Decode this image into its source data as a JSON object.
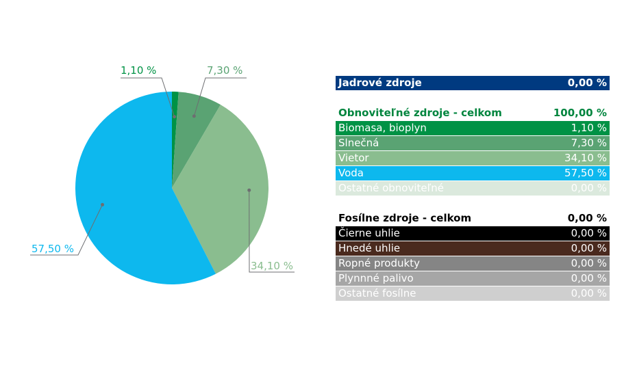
{
  "chart_data": {
    "type": "pie",
    "slices": [
      {
        "label": "Biomasa, bioplyn",
        "value": 1.1,
        "display": "1,10 %",
        "color": "#009245"
      },
      {
        "label": "Slnečná",
        "value": 7.3,
        "display": "7,30 %",
        "color": "#5aa373"
      },
      {
        "label": "Vietor",
        "value": 34.1,
        "display": "34,10 %",
        "color": "#8abd8f"
      },
      {
        "label": "Voda",
        "value": 57.5,
        "display": "57,50 %",
        "color": "#0db8ee"
      }
    ],
    "label_colors": [
      "#009245",
      "#5aa373",
      "#8abd8f",
      "#0db8ee"
    ]
  },
  "table": {
    "nuclear": {
      "label": "Jadrové zdroje",
      "value": "0,00 %",
      "bg": "#003a80",
      "fg": "#ffffff"
    },
    "renewable_total": {
      "label": "Obnoviteľné zdroje - celkom",
      "value": "100,00 %",
      "fg": "#00853e"
    },
    "renewables": [
      {
        "label": "Biomasa, bioplyn",
        "value": "1,10 %",
        "bg": "#009245",
        "fg": "#ffffff"
      },
      {
        "label": "Slnečná",
        "value": "7,30 %",
        "bg": "#5aa373",
        "fg": "#ffffff"
      },
      {
        "label": "Vietor",
        "value": "34,10 %",
        "bg": "#8abd8f",
        "fg": "#ffffff"
      },
      {
        "label": "Voda",
        "value": "57,50 %",
        "bg": "#0db8ee",
        "fg": "#ffffff"
      },
      {
        "label": "Ostatné obnoviteľné",
        "value": "0,00 %",
        "bg": "#dbe9dd",
        "fg": "#ffffff"
      }
    ],
    "fossil_total": {
      "label": "Fosílne zdroje - celkom",
      "value": "0,00 %",
      "fg": "#000000"
    },
    "fossils": [
      {
        "label": "Čierne uhlie",
        "value": "0,00 %",
        "bg": "#000000",
        "fg": "#ffffff"
      },
      {
        "label": "Hnedé uhlie",
        "value": "0,00 %",
        "bg": "#4a2a1e",
        "fg": "#ffffff"
      },
      {
        "label": "Ropné produkty",
        "value": "0,00 %",
        "bg": "#858585",
        "fg": "#ffffff"
      },
      {
        "label": "Plynnné palivo",
        "value": "0,00 %",
        "bg": "#a6a6a6",
        "fg": "#ffffff"
      },
      {
        "label": "Ostatné fosílne",
        "value": "0,00 %",
        "bg": "#cfcfcf",
        "fg": "#ffffff"
      }
    ]
  }
}
